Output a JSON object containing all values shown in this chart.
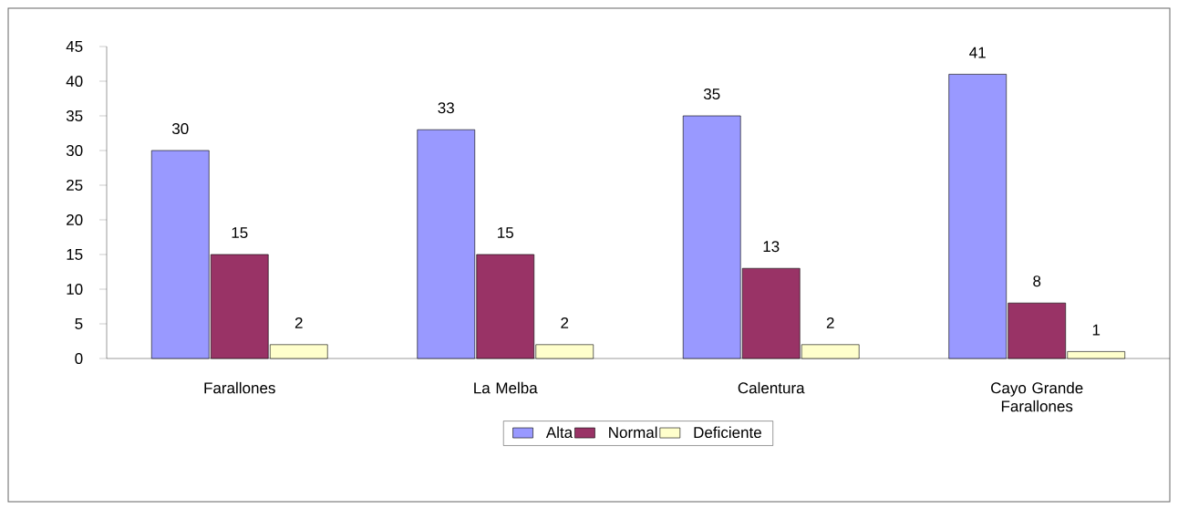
{
  "chart_data": {
    "type": "bar",
    "categories": [
      "Farallones",
      "La Melba",
      "Calentura",
      "Cayo Grande Farallones"
    ],
    "series": [
      {
        "name": "Alta",
        "color": "#9999ff",
        "values": [
          30,
          33,
          35,
          41
        ]
      },
      {
        "name": "Normal",
        "color": "#993366",
        "values": [
          15,
          15,
          13,
          8
        ]
      },
      {
        "name": "Deficiente",
        "color": "#ffffcc",
        "values": [
          2,
          2,
          2,
          1
        ]
      }
    ],
    "ylim": [
      0,
      45
    ],
    "yticks": [
      0,
      5,
      10,
      15,
      20,
      25,
      30,
      35,
      40,
      45
    ],
    "data_labels": true,
    "legend": "bottom",
    "grid": false
  }
}
